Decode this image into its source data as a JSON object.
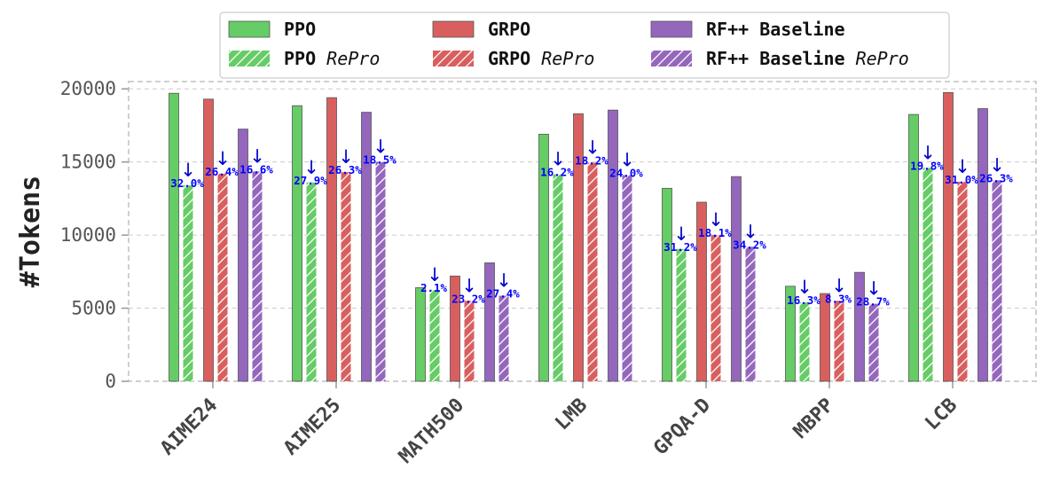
{
  "chart_data": {
    "type": "bar",
    "ylabel": "#Tokens",
    "xlabel": "",
    "ylim": [
      0,
      20500
    ],
    "yticks": [
      0,
      5000,
      10000,
      15000,
      20000
    ],
    "grid": true,
    "legend_position": "top-center",
    "categories": [
      "AIME24",
      "AIME25",
      "MATH500",
      "LMB",
      "GPQA-D",
      "MBPP",
      "LCB"
    ],
    "series": [
      {
        "name": "PPO",
        "italic_suffix": "",
        "color": "#66cc66",
        "hatched": false,
        "values": [
          19700,
          18850,
          6400,
          16900,
          13200,
          6500,
          18250
        ]
      },
      {
        "name": "PPO",
        "italic_suffix": "RePro",
        "color": "#66cc66",
        "hatched": true,
        "values": [
          13400,
          13600,
          6250,
          14150,
          9050,
          5400,
          14600
        ]
      },
      {
        "name": "GRPO",
        "italic_suffix": "",
        "color": "#d95f5f",
        "hatched": false,
        "values": [
          19300,
          19400,
          7200,
          18300,
          12250,
          6000,
          19750
        ]
      },
      {
        "name": "GRPO",
        "italic_suffix": "RePro",
        "color": "#d95f5f",
        "hatched": true,
        "values": [
          14200,
          14300,
          5500,
          14950,
          10000,
          5500,
          13650
        ]
      },
      {
        "name": "RF++ Baseline",
        "italic_suffix": "",
        "color": "#9467bd",
        "hatched": false,
        "values": [
          17250,
          18400,
          8100,
          18550,
          14000,
          7450,
          18650
        ]
      },
      {
        "name": "RF++ Baseline",
        "italic_suffix": "RePro",
        "color": "#9467bd",
        "hatched": true,
        "values": [
          14350,
          15000,
          5850,
          14100,
          9200,
          5300,
          13750
        ]
      }
    ],
    "reduction_labels": {
      "PPO": [
        "32.0%",
        "27.9%",
        "2.1%",
        "16.2%",
        "31.2%",
        "16.3%",
        "19.8%"
      ],
      "GRPO": [
        "26.4%",
        "26.3%",
        "23.2%",
        "18.2%",
        "18.1%",
        "8.3%",
        "31.0%"
      ],
      "RF++ Baseline": [
        "16.6%",
        "18.5%",
        "27.4%",
        "24.0%",
        "34.2%",
        "28.7%",
        "26.3%"
      ]
    },
    "arrow_symbol": "↓"
  }
}
